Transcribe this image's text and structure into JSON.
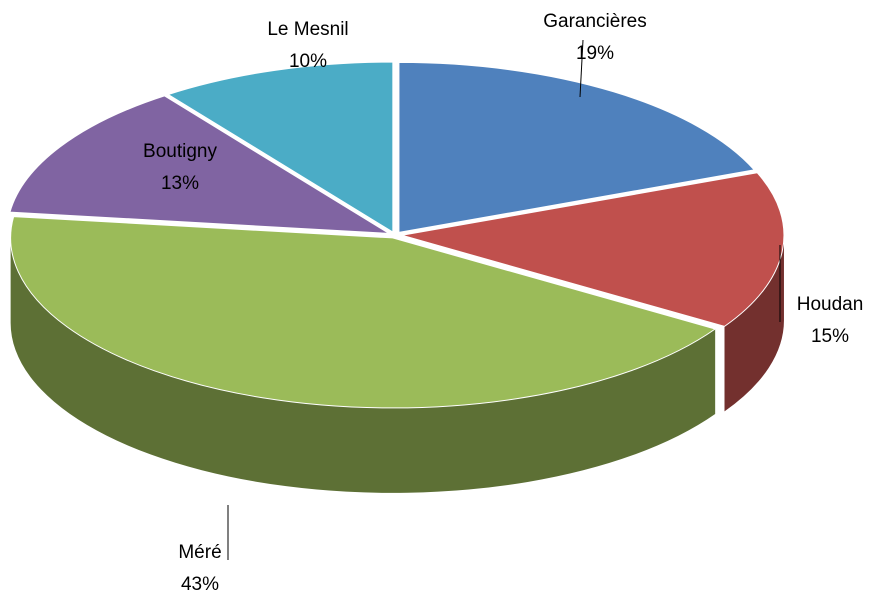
{
  "chart_data": {
    "type": "pie",
    "categories": [
      "Garancières",
      "Houdan",
      "Méré",
      "Boutigny",
      "Le Mesnil"
    ],
    "values": [
      19,
      15,
      43,
      13,
      10
    ],
    "value_labels": [
      "19%",
      "15%",
      "43%",
      "13%",
      "10%"
    ],
    "colors": [
      "#4f81bd",
      "#c0504d",
      "#9bbb59",
      "#8064a2",
      "#4bacc6"
    ]
  }
}
